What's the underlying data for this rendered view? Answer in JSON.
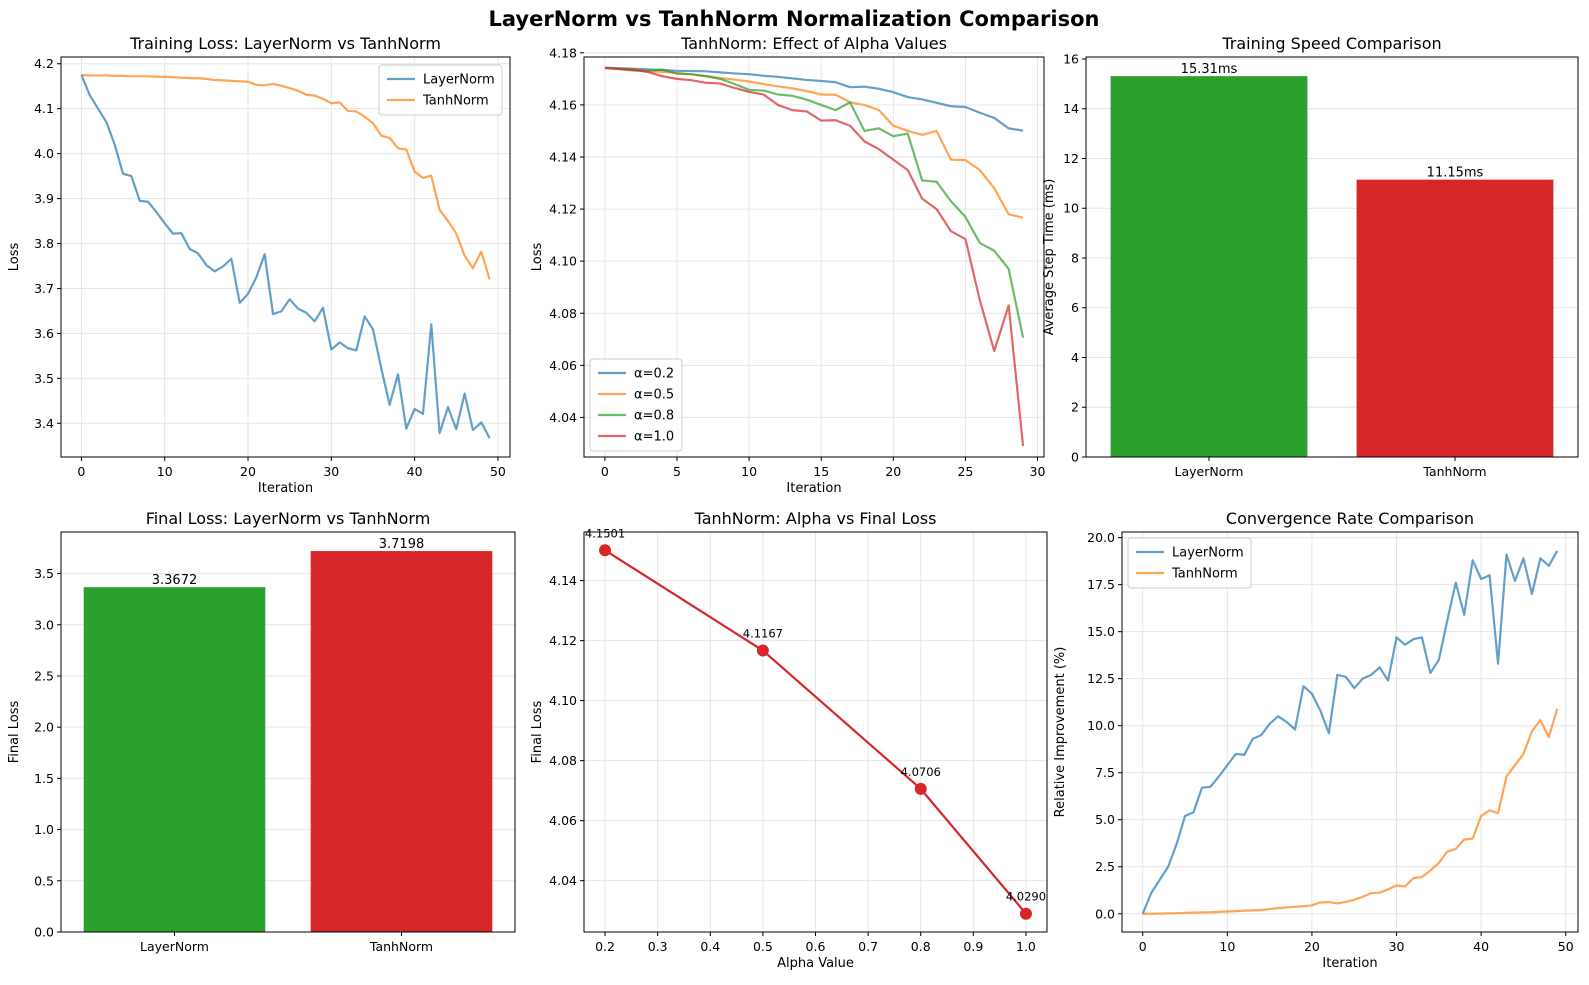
{
  "figure": {
    "title": "LayerNorm vs TanhNorm Normalization Comparison",
    "colors": {
      "blue": "#1f77b4",
      "orange": "#ff7f0e",
      "green": "#2ca02c",
      "red": "#d62728"
    }
  },
  "chart_data": [
    {
      "type": "line",
      "title": "Training Loss: LayerNorm vs TanhNorm",
      "xlabel": "Iteration",
      "ylabel": "Loss",
      "xlim": [
        -2.45,
        51.45
      ],
      "ylim": [
        3.325,
        4.215
      ],
      "xticks": [
        0,
        10,
        20,
        30,
        40,
        50
      ],
      "yticks": [
        3.4,
        3.5,
        3.6,
        3.7,
        3.8,
        3.9,
        4.0,
        4.1,
        4.2
      ],
      "ytick_decimals": 1,
      "grid": true,
      "legend": "top-right",
      "x": [
        0,
        1,
        2,
        3,
        4,
        5,
        6,
        7,
        8,
        9,
        10,
        11,
        12,
        13,
        14,
        15,
        16,
        17,
        18,
        19,
        20,
        21,
        22,
        23,
        24,
        25,
        26,
        27,
        28,
        29,
        30,
        31,
        32,
        33,
        34,
        35,
        36,
        37,
        38,
        39,
        40,
        41,
        42,
        43,
        44,
        45,
        46,
        47,
        48,
        49
      ],
      "series": [
        {
          "name": "LayerNorm",
          "color": "#1f77b4",
          "values": [
            4.175,
            4.13,
            4.1,
            4.07,
            4.02,
            3.955,
            3.95,
            3.895,
            3.893,
            3.87,
            3.845,
            3.822,
            3.823,
            3.788,
            3.778,
            3.752,
            3.738,
            3.749,
            3.766,
            3.668,
            3.688,
            3.725,
            3.776,
            3.643,
            3.649,
            3.676,
            3.655,
            3.646,
            3.627,
            3.657,
            3.564,
            3.58,
            3.567,
            3.562,
            3.638,
            3.609,
            3.522,
            3.441,
            3.509,
            3.388,
            3.432,
            3.421,
            3.62,
            3.378,
            3.436,
            3.387,
            3.466,
            3.385,
            3.402,
            3.367
          ]
        },
        {
          "name": "TanhNorm",
          "color": "#ff7f0e",
          "values": [
            4.175,
            4.174,
            4.174,
            4.174,
            4.173,
            4.173,
            4.172,
            4.172,
            4.172,
            4.171,
            4.171,
            4.17,
            4.169,
            4.168,
            4.168,
            4.166,
            4.164,
            4.163,
            4.162,
            4.161,
            4.16,
            4.153,
            4.152,
            4.155,
            4.151,
            4.146,
            4.14,
            4.131,
            4.129,
            4.122,
            4.112,
            4.114,
            4.095,
            4.094,
            4.082,
            4.068,
            4.04,
            4.035,
            4.012,
            4.009,
            3.96,
            3.946,
            3.951,
            3.875,
            3.85,
            3.822,
            3.773,
            3.745,
            3.782,
            3.72
          ]
        }
      ]
    },
    {
      "type": "line",
      "title": "TanhNorm: Effect of Alpha Values",
      "xlabel": "Iteration",
      "ylabel": "Loss",
      "xlim": [
        -1.45,
        30.45
      ],
      "ylim": [
        4.0248,
        4.1784
      ],
      "xticks": [
        0,
        5,
        10,
        15,
        20,
        25,
        30
      ],
      "yticks": [
        4.04,
        4.06,
        4.08,
        4.1,
        4.12,
        4.14,
        4.16,
        4.18
      ],
      "ytick_decimals": 2,
      "grid": true,
      "legend": "bottom-left",
      "x": [
        0,
        1,
        2,
        3,
        4,
        5,
        6,
        7,
        8,
        9,
        10,
        11,
        12,
        13,
        14,
        15,
        16,
        17,
        18,
        19,
        20,
        21,
        22,
        23,
        24,
        25,
        26,
        27,
        28,
        29
      ],
      "series": [
        {
          "name": "α=0.2",
          "color": "#1f77b4",
          "values": [
            4.1743,
            4.1741,
            4.1739,
            4.1736,
            4.1734,
            4.1731,
            4.173,
            4.1729,
            4.1725,
            4.1721,
            4.1718,
            4.1712,
            4.1708,
            4.1702,
            4.1696,
            4.1692,
            4.1687,
            4.1668,
            4.167,
            4.1662,
            4.1649,
            4.163,
            4.1621,
            4.1608,
            4.1595,
            4.1592,
            4.157,
            4.155,
            4.151,
            4.1501
          ]
        },
        {
          "name": "α=0.5",
          "color": "#ff7f0e",
          "values": [
            4.1742,
            4.1739,
            4.1735,
            4.1729,
            4.1727,
            4.1723,
            4.1717,
            4.1711,
            4.1703,
            4.1697,
            4.169,
            4.168,
            4.1671,
            4.1664,
            4.1653,
            4.164,
            4.1639,
            4.161,
            4.16,
            4.158,
            4.152,
            4.15,
            4.1485,
            4.15,
            4.139,
            4.1388,
            4.135,
            4.128,
            4.118,
            4.1167
          ]
        },
        {
          "name": "α=0.8",
          "color": "#2ca02c",
          "values": [
            4.1742,
            4.1738,
            4.1732,
            4.1732,
            4.1735,
            4.172,
            4.1718,
            4.171,
            4.17,
            4.168,
            4.1658,
            4.1655,
            4.164,
            4.1635,
            4.162,
            4.16,
            4.158,
            4.161,
            4.15,
            4.151,
            4.148,
            4.149,
            4.131,
            4.1305,
            4.123,
            4.117,
            4.107,
            4.104,
            4.097,
            4.0706
          ]
        },
        {
          "name": "α=1.0",
          "color": "#d62728",
          "values": [
            4.1742,
            4.1738,
            4.1735,
            4.1726,
            4.171,
            4.17,
            4.1695,
            4.1685,
            4.1682,
            4.1665,
            4.165,
            4.164,
            4.16,
            4.158,
            4.1575,
            4.154,
            4.1541,
            4.152,
            4.146,
            4.143,
            4.139,
            4.135,
            4.124,
            4.12,
            4.1115,
            4.1085,
            4.085,
            4.0655,
            4.083,
            4.029
          ]
        }
      ]
    },
    {
      "type": "bar",
      "title": "Training Speed Comparison",
      "xlabel": "",
      "ylabel": "Average Step Time (ms)",
      "ylim": [
        0,
        16.08
      ],
      "yticks": [
        0,
        2,
        4,
        6,
        8,
        10,
        12,
        14,
        16
      ],
      "ytick_decimals": 0,
      "grid": true,
      "categories": [
        "LayerNorm",
        "TanhNorm"
      ],
      "values": [
        15.31,
        11.15
      ],
      "colors": [
        "#2ca02c",
        "#d62728"
      ],
      "data_labels": [
        "15.31ms",
        "11.15ms"
      ]
    },
    {
      "type": "bar",
      "title": "Final Loss: LayerNorm vs TanhNorm",
      "xlabel": "",
      "ylabel": "Final Loss",
      "ylim": [
        0,
        3.906
      ],
      "yticks": [
        0.0,
        0.5,
        1.0,
        1.5,
        2.0,
        2.5,
        3.0,
        3.5
      ],
      "ytick_decimals": 1,
      "grid": true,
      "categories": [
        "LayerNorm",
        "TanhNorm"
      ],
      "values": [
        3.3672,
        3.7198
      ],
      "colors": [
        "#2ca02c",
        "#d62728"
      ],
      "data_labels": [
        "3.3672",
        "3.7198"
      ]
    },
    {
      "type": "line",
      "title": "TanhNorm: Alpha vs Final Loss",
      "xlabel": "Alpha Value",
      "ylabel": "Final Loss",
      "xlim": [
        0.16,
        1.04
      ],
      "ylim": [
        4.0229,
        4.1562
      ],
      "xticks": [
        0.2,
        0.3,
        0.4,
        0.5,
        0.6,
        0.7,
        0.8,
        0.9,
        1.0
      ],
      "yticks": [
        4.04,
        4.06,
        4.08,
        4.1,
        4.12,
        4.14
      ],
      "xtick_decimals": 1,
      "ytick_decimals": 2,
      "grid": true,
      "markers": true,
      "x": [
        0.2,
        0.5,
        0.8,
        1.0
      ],
      "series": [
        {
          "name": "",
          "color": "#d62728",
          "values": [
            4.1501,
            4.1167,
            4.0706,
            4.029
          ]
        }
      ],
      "data_labels": [
        "4.1501",
        "4.1167",
        "4.0706",
        "4.0290"
      ]
    },
    {
      "type": "line",
      "title": "Convergence Rate Comparison",
      "xlabel": "Iteration",
      "ylabel": "Relative Improvement (%)",
      "xlim": [
        -2.45,
        51.45
      ],
      "ylim": [
        -0.97,
        20.3
      ],
      "xticks": [
        0,
        10,
        20,
        30,
        40,
        50
      ],
      "yticks": [
        0.0,
        2.5,
        5.0,
        7.5,
        10.0,
        12.5,
        15.0,
        17.5,
        20.0
      ],
      "ytick_decimals": 1,
      "grid": true,
      "legend": "top-left",
      "x": [
        0,
        1,
        2,
        3,
        4,
        5,
        6,
        7,
        8,
        9,
        10,
        11,
        12,
        13,
        14,
        15,
        16,
        17,
        18,
        19,
        20,
        21,
        22,
        23,
        24,
        25,
        26,
        27,
        28,
        29,
        30,
        31,
        32,
        33,
        34,
        35,
        36,
        37,
        38,
        39,
        40,
        41,
        42,
        43,
        44,
        45,
        46,
        47,
        48,
        49
      ],
      "series": [
        {
          "name": "LayerNorm",
          "color": "#1f77b4",
          "values": [
            0,
            1.1,
            1.8,
            2.5,
            3.7,
            5.2,
            5.4,
            6.7,
            6.75,
            7.3,
            7.9,
            8.5,
            8.45,
            9.3,
            9.5,
            10.1,
            10.5,
            10.2,
            9.8,
            12.1,
            11.7,
            10.8,
            9.6,
            12.7,
            12.6,
            12.0,
            12.5,
            12.7,
            13.1,
            12.4,
            14.7,
            14.3,
            14.6,
            14.7,
            12.8,
            13.5,
            15.6,
            17.6,
            15.9,
            18.8,
            17.8,
            18.0,
            13.3,
            19.1,
            17.7,
            18.9,
            17.0,
            18.9,
            18.5,
            19.3
          ]
        },
        {
          "name": "TanhNorm",
          "color": "#ff7f0e",
          "values": [
            0,
            0,
            0.01,
            0.02,
            0.03,
            0.05,
            0.06,
            0.07,
            0.08,
            0.1,
            0.12,
            0.14,
            0.16,
            0.18,
            0.2,
            0.25,
            0.3,
            0.34,
            0.37,
            0.4,
            0.45,
            0.6,
            0.62,
            0.55,
            0.63,
            0.75,
            0.9,
            1.1,
            1.12,
            1.3,
            1.5,
            1.45,
            1.9,
            1.95,
            2.3,
            2.7,
            3.3,
            3.45,
            3.95,
            4.0,
            5.2,
            5.5,
            5.35,
            7.3,
            7.9,
            8.5,
            9.7,
            10.3,
            9.4,
            10.9
          ]
        }
      ]
    }
  ]
}
